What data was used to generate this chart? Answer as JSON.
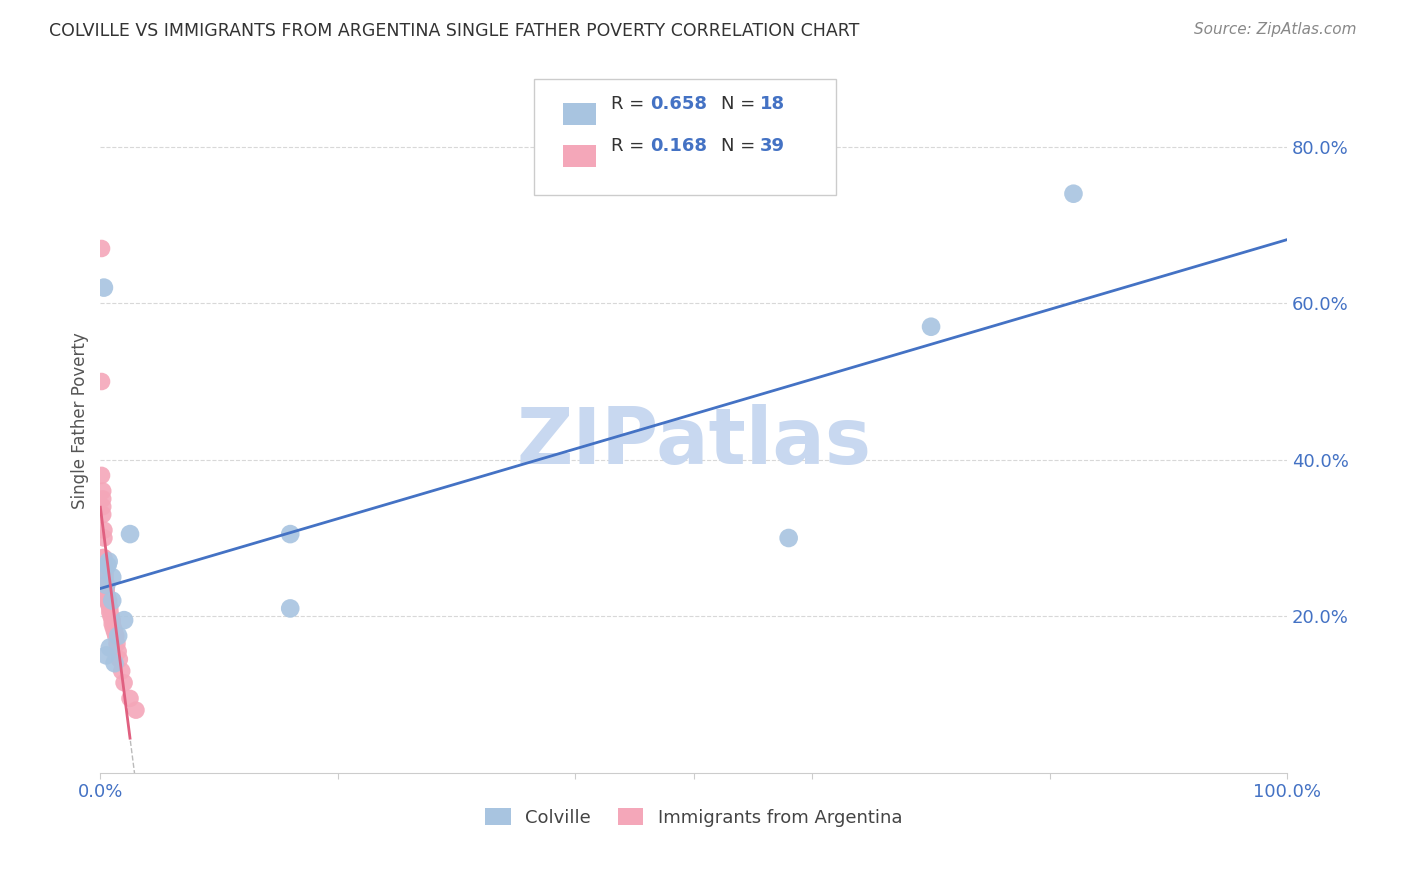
{
  "title": "COLVILLE VS IMMIGRANTS FROM ARGENTINA SINGLE FATHER POVERTY CORRELATION CHART",
  "source": "Source: ZipAtlas.com",
  "ylabel": "Single Father Poverty",
  "ytick_labels": [
    "20.0%",
    "40.0%",
    "60.0%",
    "80.0%"
  ],
  "ytick_values": [
    0.2,
    0.4,
    0.6,
    0.8
  ],
  "xlim": [
    0.0,
    1.0
  ],
  "ylim": [
    0.0,
    0.9
  ],
  "colville_color": "#a8c4e0",
  "argentina_color": "#f4a7b9",
  "trendline1_color": "#4472c4",
  "trendline2_color": "#e06080",
  "watermark": "ZIPatlas",
  "watermark_color": "#c8d8f0",
  "colville_x": [
    0.003,
    0.003,
    0.005,
    0.005,
    0.006,
    0.007,
    0.008,
    0.01,
    0.01,
    0.012,
    0.015,
    0.02,
    0.025,
    0.16,
    0.16,
    0.58,
    0.7,
    0.82
  ],
  "colville_y": [
    0.62,
    0.26,
    0.24,
    0.15,
    0.265,
    0.27,
    0.16,
    0.25,
    0.22,
    0.14,
    0.175,
    0.195,
    0.305,
    0.21,
    0.305,
    0.3,
    0.57,
    0.74
  ],
  "argentina_x": [
    0.001,
    0.001,
    0.001,
    0.002,
    0.002,
    0.002,
    0.002,
    0.002,
    0.003,
    0.003,
    0.003,
    0.003,
    0.003,
    0.004,
    0.004,
    0.004,
    0.004,
    0.005,
    0.005,
    0.005,
    0.006,
    0.006,
    0.007,
    0.007,
    0.008,
    0.008,
    0.009,
    0.01,
    0.01,
    0.011,
    0.012,
    0.013,
    0.014,
    0.015,
    0.016,
    0.018,
    0.02,
    0.025,
    0.03
  ],
  "argentina_y": [
    0.67,
    0.5,
    0.38,
    0.36,
    0.35,
    0.34,
    0.33,
    0.275,
    0.31,
    0.3,
    0.275,
    0.27,
    0.265,
    0.26,
    0.255,
    0.25,
    0.245,
    0.24,
    0.235,
    0.23,
    0.225,
    0.22,
    0.22,
    0.215,
    0.21,
    0.205,
    0.2,
    0.195,
    0.19,
    0.185,
    0.18,
    0.175,
    0.165,
    0.155,
    0.145,
    0.13,
    0.115,
    0.095,
    0.08
  ],
  "legend_label1": "Colville",
  "legend_label2": "Immigrants from Argentina",
  "background_color": "#ffffff",
  "grid_color": "#d8d8d8"
}
